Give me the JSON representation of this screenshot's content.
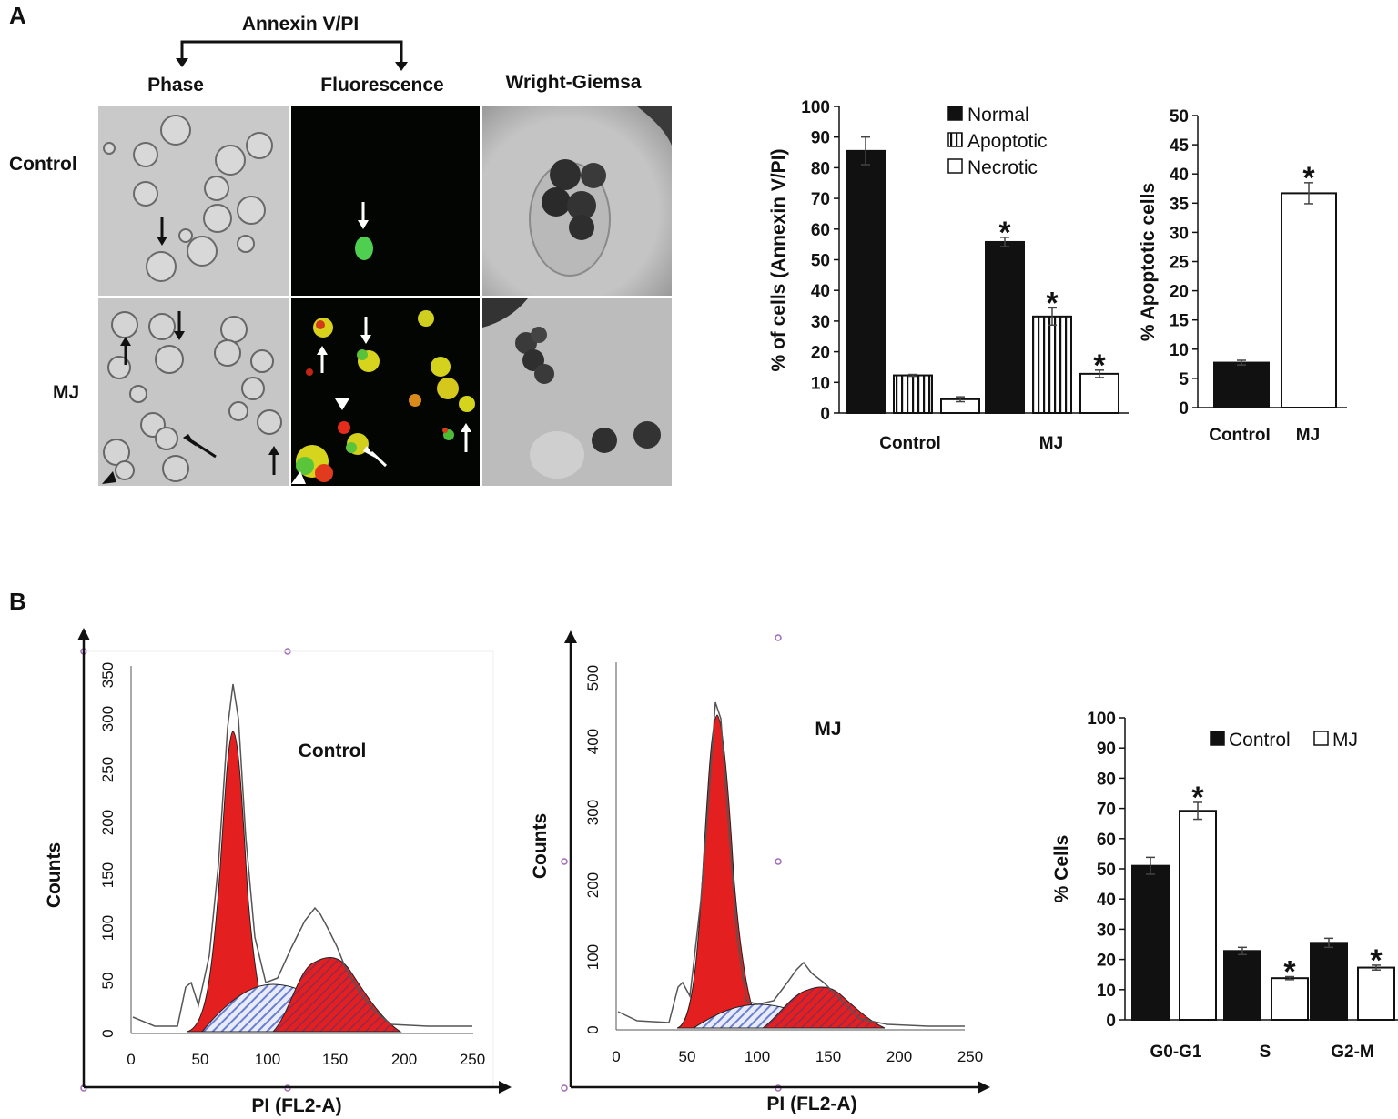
{
  "panel_A": {
    "label": "A",
    "annexin_header": "Annexin V/PI",
    "col_phase": "Phase",
    "col_fluorescence": "Fluorescence",
    "col_wright": "Wright-Giemsa",
    "row_control": "Control",
    "row_mj": "MJ"
  },
  "panel_B": {
    "label": "B",
    "hist_control_title": "Control",
    "hist_mj_title": "MJ",
    "hist_ylabel": "Counts",
    "hist_xlabel": "PI (FL2-A)",
    "hist_control_yticks": [
      "0",
      "50",
      "100",
      "150",
      "200",
      "250",
      "300",
      "350"
    ],
    "hist_mj_yticks": [
      "0",
      "100",
      "200",
      "300",
      "400",
      "500"
    ],
    "hist_xticks": [
      "0",
      "50",
      "100",
      "150",
      "200",
      "250"
    ]
  },
  "colors": {
    "black_bar": "#111111",
    "white_bar": "#ffffff",
    "red_fill": "#e31f1f",
    "hatch": "#6b7fd0",
    "micrograph_gray": "#c8c8c8",
    "fluor_bg": "#030503"
  },
  "chart_data": [
    {
      "id": "annexin",
      "type": "bar",
      "title": "",
      "xlabel": "",
      "ylabel": "% of cells (Annexin V/PI)",
      "categories": [
        "Control",
        "MJ"
      ],
      "series": [
        {
          "name": "Normal",
          "values": [
            85.5,
            55.8
          ],
          "errors": [
            4.5,
            1.5
          ],
          "sig": [
            false,
            true
          ]
        },
        {
          "name": "Apoptotic",
          "values": [
            12.3,
            31.5
          ],
          "errors": [
            0.3,
            2.8
          ],
          "sig": [
            false,
            true
          ]
        },
        {
          "name": "Necrotic",
          "values": [
            4.5,
            12.8
          ],
          "errors": [
            0.8,
            1.2
          ],
          "sig": [
            false,
            true
          ]
        }
      ],
      "ylim": [
        0,
        100
      ],
      "yticks": [
        "0",
        "10",
        "20",
        "30",
        "40",
        "50",
        "60",
        "70",
        "80",
        "90",
        "100"
      ],
      "legend": "top-right",
      "significance_marker": "*"
    },
    {
      "id": "apoptotic",
      "type": "bar",
      "title": "",
      "xlabel": "",
      "ylabel": "% Apoptotic cells",
      "categories": [
        "Control",
        "MJ"
      ],
      "values": [
        7.7,
        36.7
      ],
      "errors": [
        0.4,
        1.8
      ],
      "sig": [
        false,
        true
      ],
      "ylim": [
        0,
        50
      ],
      "yticks": [
        "0",
        "5",
        "10",
        "15",
        "20",
        "25",
        "30",
        "35",
        "40",
        "45",
        "50"
      ],
      "significance_marker": "*"
    },
    {
      "id": "cellcycle",
      "type": "bar",
      "title": "",
      "xlabel": "",
      "ylabel": "% Cells",
      "categories": [
        "G0-G1",
        "S",
        "G2-M"
      ],
      "series": [
        {
          "name": "Control",
          "values": [
            51.0,
            22.8,
            25.5
          ],
          "errors": [
            2.8,
            1.2,
            1.5
          ],
          "sig": [
            false,
            false,
            false
          ]
        },
        {
          "name": "MJ",
          "values": [
            69.2,
            13.8,
            17.3
          ],
          "errors": [
            2.8,
            0.5,
            0.8
          ],
          "sig": [
            true,
            true,
            true
          ]
        }
      ],
      "ylim": [
        0,
        100
      ],
      "yticks": [
        "0",
        "10",
        "20",
        "30",
        "40",
        "50",
        "60",
        "70",
        "80",
        "90",
        "100"
      ],
      "legend": "top",
      "significance_marker": "*"
    }
  ]
}
